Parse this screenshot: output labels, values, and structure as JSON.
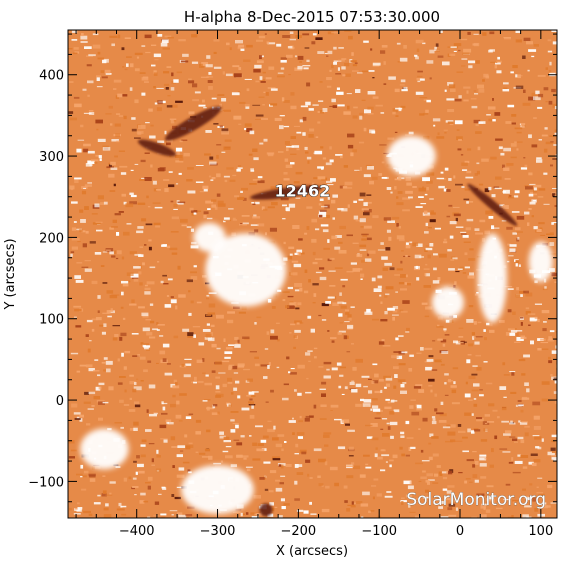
{
  "chart_data": {
    "type": "heatmap",
    "title": "H-alpha   8-Dec-2015 07:53:30.000",
    "xlabel": "X (arcsecs)",
    "ylabel": "Y (arcsecs)",
    "xlim": [
      -485,
      120
    ],
    "ylim": [
      -145,
      455
    ],
    "x_ticks": [
      -400,
      -300,
      -200,
      -100,
      0,
      100
    ],
    "y_ticks": [
      -100,
      0,
      100,
      200,
      300,
      400
    ],
    "x_tick_labels": [
      "−400",
      "−300",
      "−200",
      "−100",
      "0",
      "100"
    ],
    "y_tick_labels": [
      "−100",
      "0",
      "100",
      "200",
      "300",
      "400"
    ],
    "colormap": [
      "#ffffff",
      "#f5a46a",
      "#e07a2c",
      "#a8421a",
      "#5a1a0a"
    ],
    "annotations": [
      {
        "text": "12462",
        "x": -195,
        "y": 250
      }
    ],
    "bright_regions": [
      {
        "x": -265,
        "y": 160,
        "rx": 50,
        "ry": 45
      },
      {
        "x": -310,
        "y": 200,
        "rx": 20,
        "ry": 18
      },
      {
        "x": 40,
        "y": 150,
        "rx": 18,
        "ry": 55
      },
      {
        "x": 100,
        "y": 170,
        "rx": 15,
        "ry": 25
      },
      {
        "x": -300,
        "y": -110,
        "rx": 45,
        "ry": 30
      },
      {
        "x": -440,
        "y": -60,
        "rx": 30,
        "ry": 25
      },
      {
        "x": -60,
        "y": 300,
        "rx": 30,
        "ry": 25
      },
      {
        "x": -15,
        "y": 120,
        "rx": 20,
        "ry": 20
      }
    ],
    "dark_features": [
      {
        "x": -330,
        "y": 340,
        "rx": 40,
        "ry": 8,
        "angle": -30
      },
      {
        "x": -375,
        "y": 310,
        "rx": 25,
        "ry": 6,
        "angle": 20
      },
      {
        "x": -215,
        "y": 255,
        "rx": 45,
        "ry": 6,
        "angle": -8
      },
      {
        "x": -240,
        "y": -135,
        "rx": 8,
        "ry": 8,
        "angle": 0
      },
      {
        "x": 40,
        "y": 240,
        "rx": 40,
        "ry": 5,
        "angle": 40
      }
    ]
  },
  "watermark": "SolarMonitor.org"
}
